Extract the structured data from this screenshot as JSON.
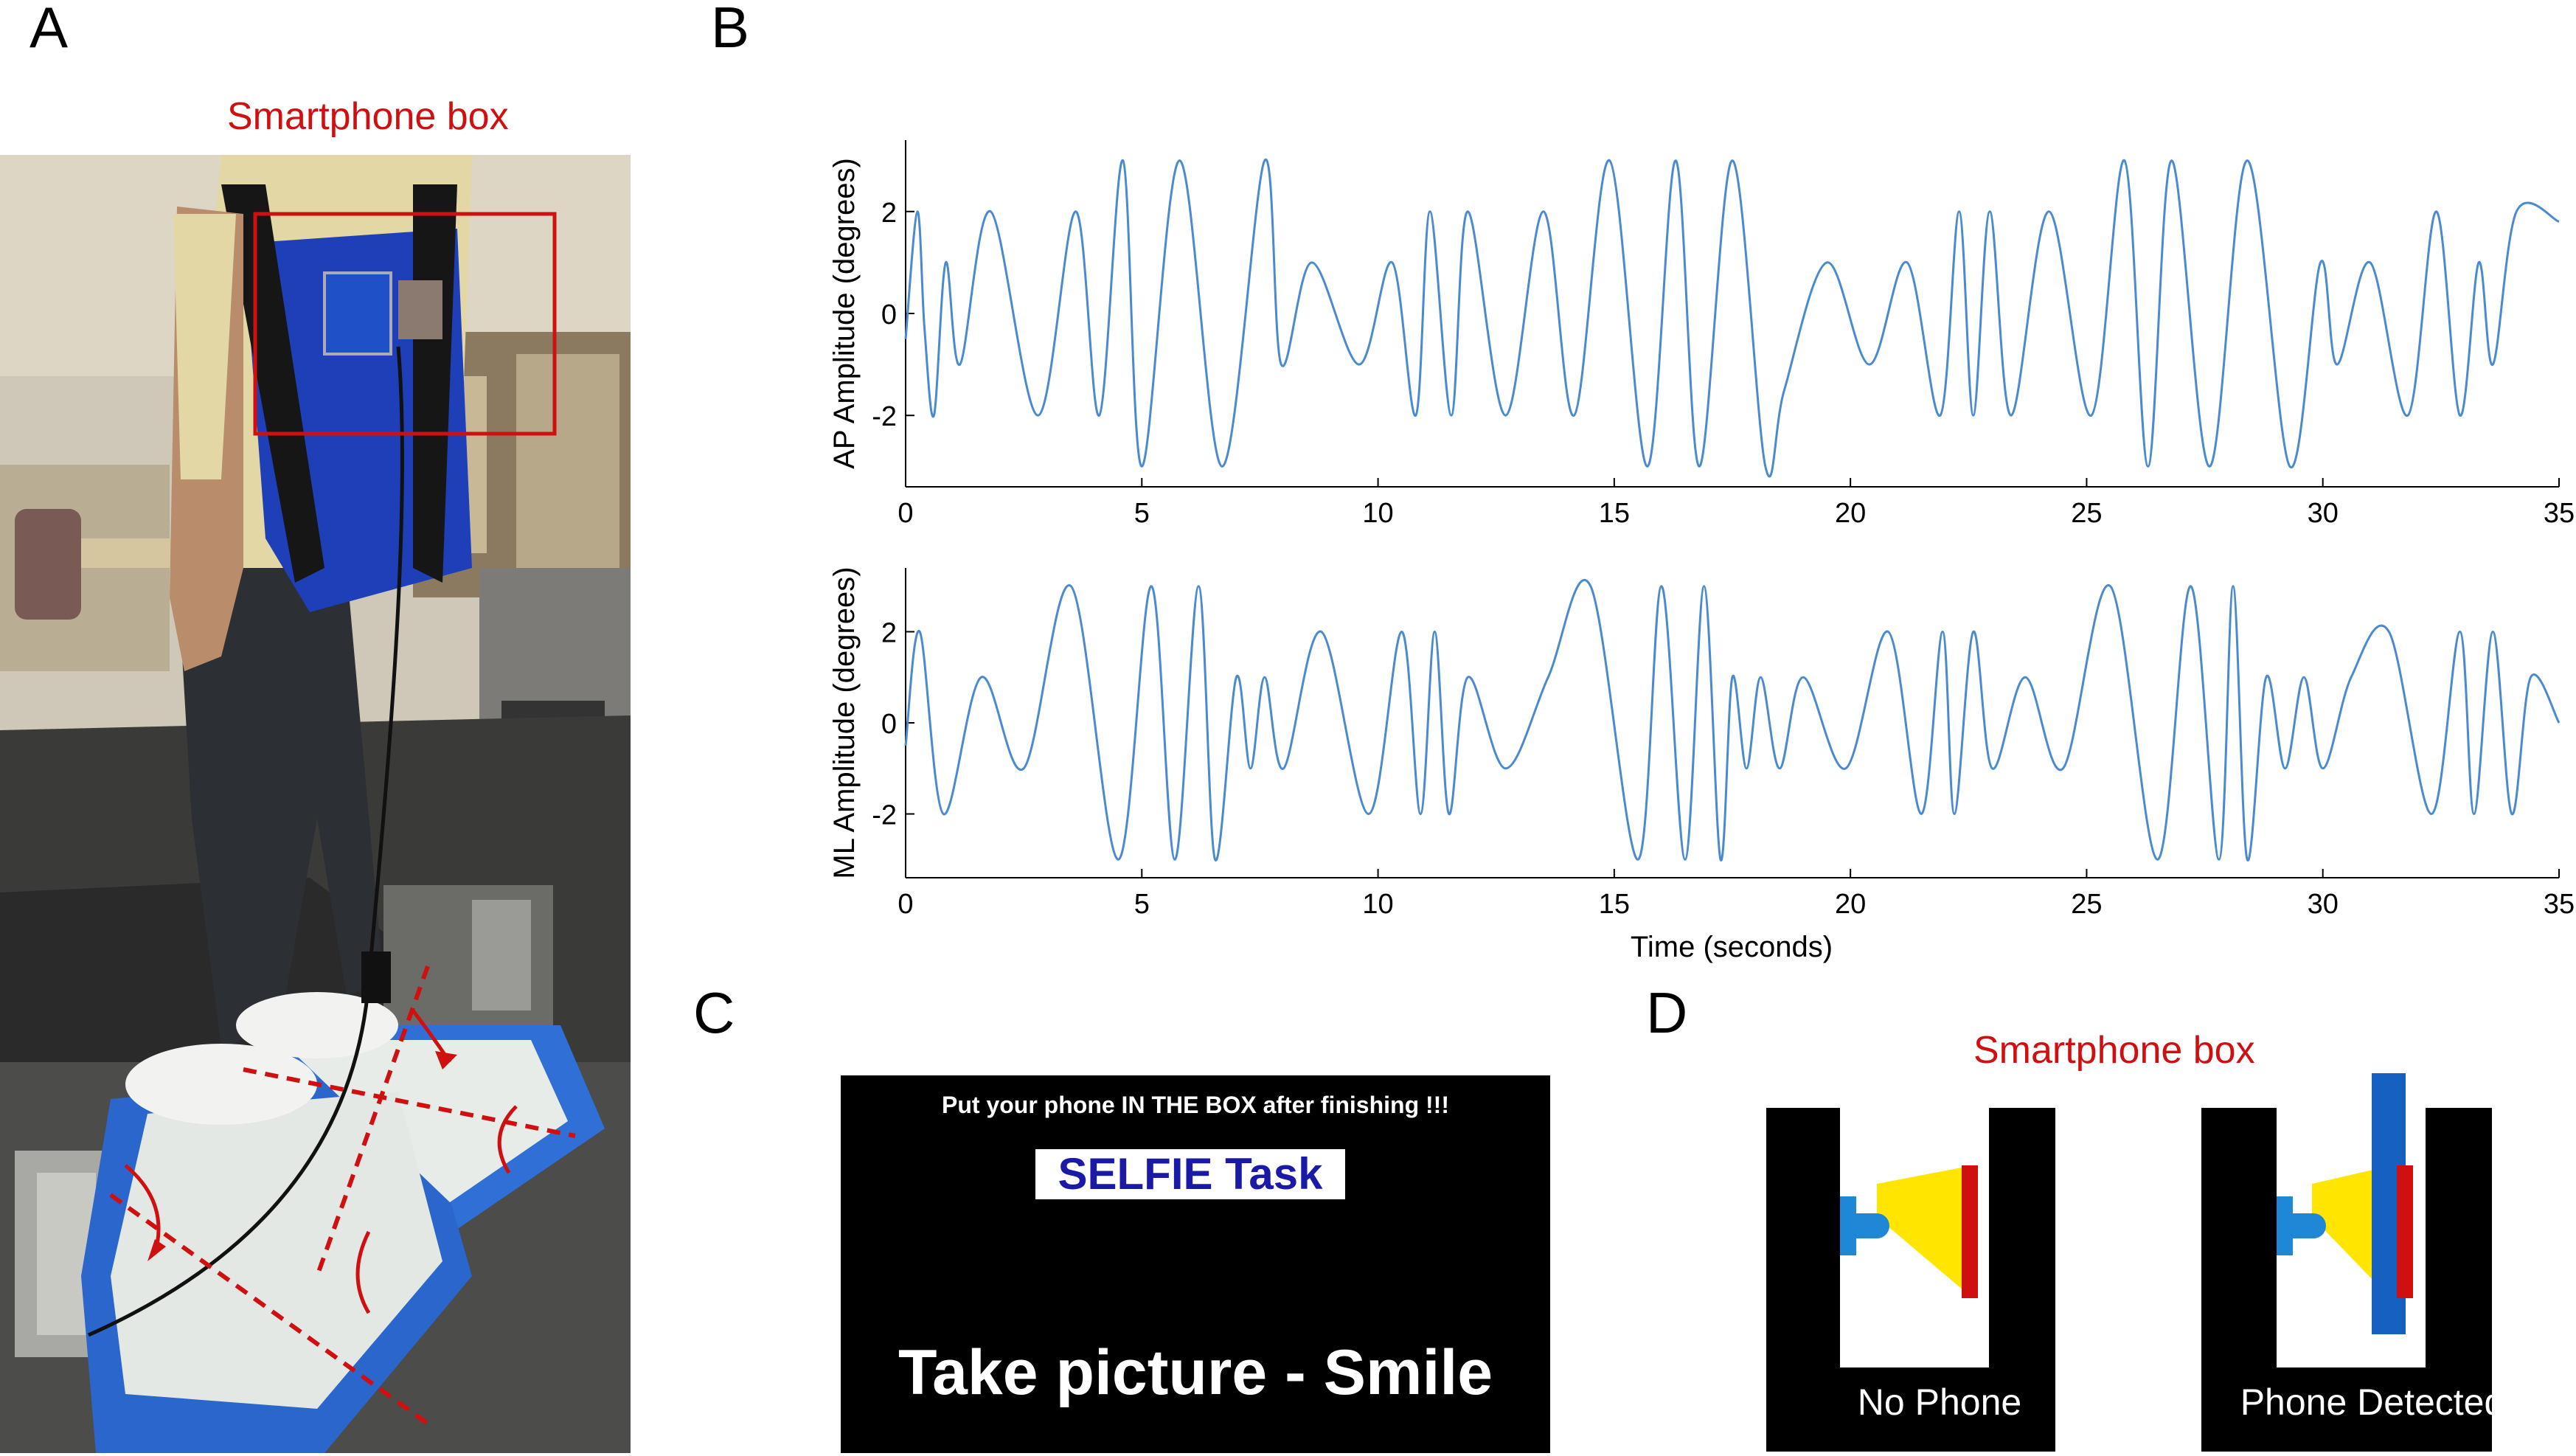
{
  "panels": {
    "a": {
      "letter": "A",
      "title": "Smartphone box",
      "colors": {
        "vest": "#1f3fb8",
        "box_outline": "#d01010",
        "arrows": "#d01010",
        "platform": "#2f6fd6"
      }
    },
    "b": {
      "letter": "B",
      "top_ylabel": "AP Amplitude (degrees)",
      "bottom_ylabel": "ML Amplitude (degrees)",
      "xlabel": "Time (seconds)"
    },
    "c": {
      "letter": "C",
      "instruction": "Put your phone IN THE BOX after finishing !!!",
      "task_title": "SELFIE Task",
      "task_prompt": "Take picture - Smile",
      "colors": {
        "screen": "#000000",
        "task_title_bg": "#ffffff",
        "task_title_text": "#1a1aa6"
      }
    },
    "d": {
      "letter": "D",
      "title": "Smartphone box",
      "left_label": "No Phone",
      "right_label": "Phone Detected",
      "colors": {
        "box": "#000000",
        "beam": "#ffe500",
        "sensor": "#1e88d6",
        "receiver": "#d01010",
        "phone": "#1560c0"
      }
    }
  },
  "chart_data": [
    {
      "type": "line",
      "title": "",
      "xlabel": "",
      "ylabel": "AP Amplitude (degrees)",
      "xlim": [
        0,
        35
      ],
      "ylim": [
        -3.4,
        3.4
      ],
      "xticks": [
        0,
        5,
        10,
        15,
        20,
        25,
        30,
        35
      ],
      "yticks": [
        -2,
        0,
        2
      ],
      "color": "#4a8ad0",
      "series": [
        {
          "x": [
            0,
            0.25,
            0.4,
            0.6,
            0.85,
            1.15,
            1.8,
            2.8,
            3.6,
            4.1,
            4.6,
            5.0,
            5.8,
            6.7,
            7.6,
            7.95,
            8.6,
            9.6,
            10.3,
            10.8,
            11.1,
            11.55,
            11.9,
            12.7,
            13.5,
            14.15,
            14.9,
            15.7,
            16.3,
            16.8,
            17.5,
            18.2,
            18.6,
            19.5,
            20.4,
            21.2,
            21.9,
            22.3,
            22.6,
            22.95,
            23.4,
            24.2,
            25.1,
            25.8,
            26.3,
            26.8,
            27.6,
            28.4,
            29.3,
            29.95,
            30.3,
            31.0,
            31.8,
            32.4,
            32.9,
            33.3,
            33.6,
            34.1,
            35
          ],
          "y": [
            -0.5,
            2.0,
            -0.3,
            -2.0,
            1.0,
            -1.0,
            2.0,
            -2.0,
            2.0,
            -2.0,
            3.0,
            -3.0,
            3.0,
            -3.0,
            3.0,
            -1.0,
            1.0,
            -1.0,
            1.0,
            -2.0,
            2.0,
            -2.0,
            2.0,
            -2.0,
            2.0,
            -2.0,
            3.0,
            -3.0,
            3.0,
            -3.0,
            3.0,
            -3.0,
            -1.5,
            1.0,
            -1.0,
            1.0,
            -2.0,
            2.0,
            -2.0,
            2.0,
            -2.0,
            2.0,
            -2.0,
            3.0,
            -3.0,
            3.0,
            -3.0,
            3.0,
            -3.0,
            1.0,
            -1.0,
            1.0,
            -2.0,
            2.0,
            -2.0,
            1.0,
            -1.0,
            2.0,
            1.8
          ]
        }
      ]
    },
    {
      "type": "line",
      "title": "",
      "xlabel": "Time (seconds)",
      "ylabel": "ML Amplitude (degrees)",
      "xlim": [
        0,
        35
      ],
      "ylim": [
        -3.4,
        3.4
      ],
      "xticks": [
        0,
        5,
        10,
        15,
        20,
        25,
        30,
        35
      ],
      "yticks": [
        -2,
        0,
        2
      ],
      "color": "#4a8ad0",
      "series": [
        {
          "x": [
            0,
            0.3,
            0.8,
            1.6,
            2.5,
            3.5,
            4.5,
            5.2,
            5.7,
            6.2,
            6.55,
            7.0,
            7.3,
            7.6,
            8.0,
            8.8,
            9.8,
            10.5,
            10.9,
            11.2,
            11.5,
            11.9,
            12.7,
            13.6,
            14.5,
            15.5,
            16.0,
            16.5,
            16.9,
            17.25,
            17.5,
            17.8,
            18.1,
            18.5,
            19.0,
            19.9,
            20.8,
            21.5,
            21.95,
            22.2,
            22.6,
            23.0,
            23.7,
            24.5,
            25.5,
            26.5,
            27.2,
            27.8,
            28.1,
            28.4,
            28.8,
            29.2,
            29.6,
            30.0,
            30.6,
            31.4,
            32.3,
            32.9,
            33.2,
            33.6,
            34.0,
            34.4,
            35
          ],
          "y": [
            -0.5,
            2.0,
            -2.0,
            1.0,
            -1.0,
            3.0,
            -3.0,
            3.0,
            -3.0,
            3.0,
            -3.0,
            1.0,
            -1.0,
            1.0,
            -1.0,
            2.0,
            -2.0,
            2.0,
            -2.0,
            2.0,
            -2.0,
            1.0,
            -1.0,
            1.0,
            3.0,
            -3.0,
            3.0,
            -3.0,
            3.0,
            -3.0,
            1.0,
            -1.0,
            1.0,
            -1.0,
            1.0,
            -1.0,
            2.0,
            -2.0,
            2.0,
            -2.0,
            2.0,
            -1.0,
            1.0,
            -1.0,
            3.0,
            -3.0,
            3.0,
            -3.0,
            3.0,
            -3.0,
            1.0,
            -1.0,
            1.0,
            -1.0,
            1.0,
            2.0,
            -2.0,
            2.0,
            -2.0,
            2.0,
            -2.0,
            1.0,
            0.0
          ]
        }
      ]
    }
  ]
}
